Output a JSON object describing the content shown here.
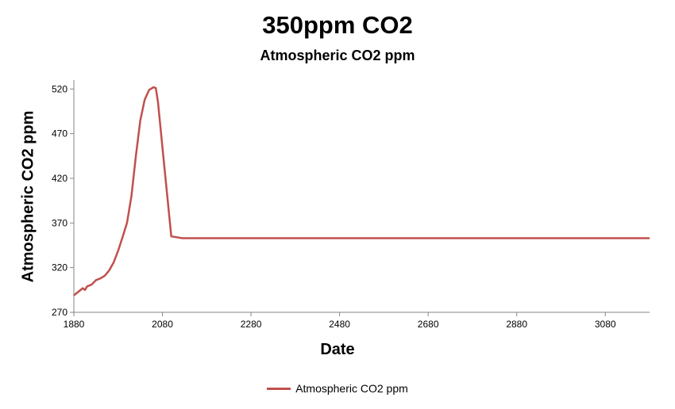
{
  "chart_data": {
    "type": "line",
    "title": "350ppm CO2",
    "subtitle": "Atmospheric CO2 ppm",
    "xlabel": "Date",
    "ylabel": "Atmospheric CO2 ppm",
    "xlim": [
      1880,
      3180
    ],
    "ylim": [
      270,
      530
    ],
    "xticks": [
      1880,
      2080,
      2280,
      2480,
      2680,
      2880,
      3080
    ],
    "yticks": [
      270,
      320,
      370,
      420,
      470,
      520
    ],
    "grid": false,
    "legend_position": "bottom",
    "series": [
      {
        "name": "Atmospheric CO2 ppm",
        "color": "#C0504D",
        "x": [
          1880,
          1890,
          1900,
          1905,
          1910,
          1920,
          1930,
          1940,
          1950,
          1960,
          1970,
          1980,
          1990,
          2000,
          2010,
          2020,
          2030,
          2040,
          2050,
          2060,
          2065,
          2070,
          2080,
          2090,
          2100,
          2125,
          2400,
          2800,
          3080,
          3180
        ],
        "values": [
          289,
          293,
          297,
          295,
          299,
          301,
          306,
          308,
          311,
          317,
          326,
          339,
          354,
          370,
          400,
          445,
          485,
          508,
          519,
          522,
          521,
          505,
          455,
          405,
          355,
          353,
          353,
          353,
          353,
          353
        ]
      }
    ]
  }
}
